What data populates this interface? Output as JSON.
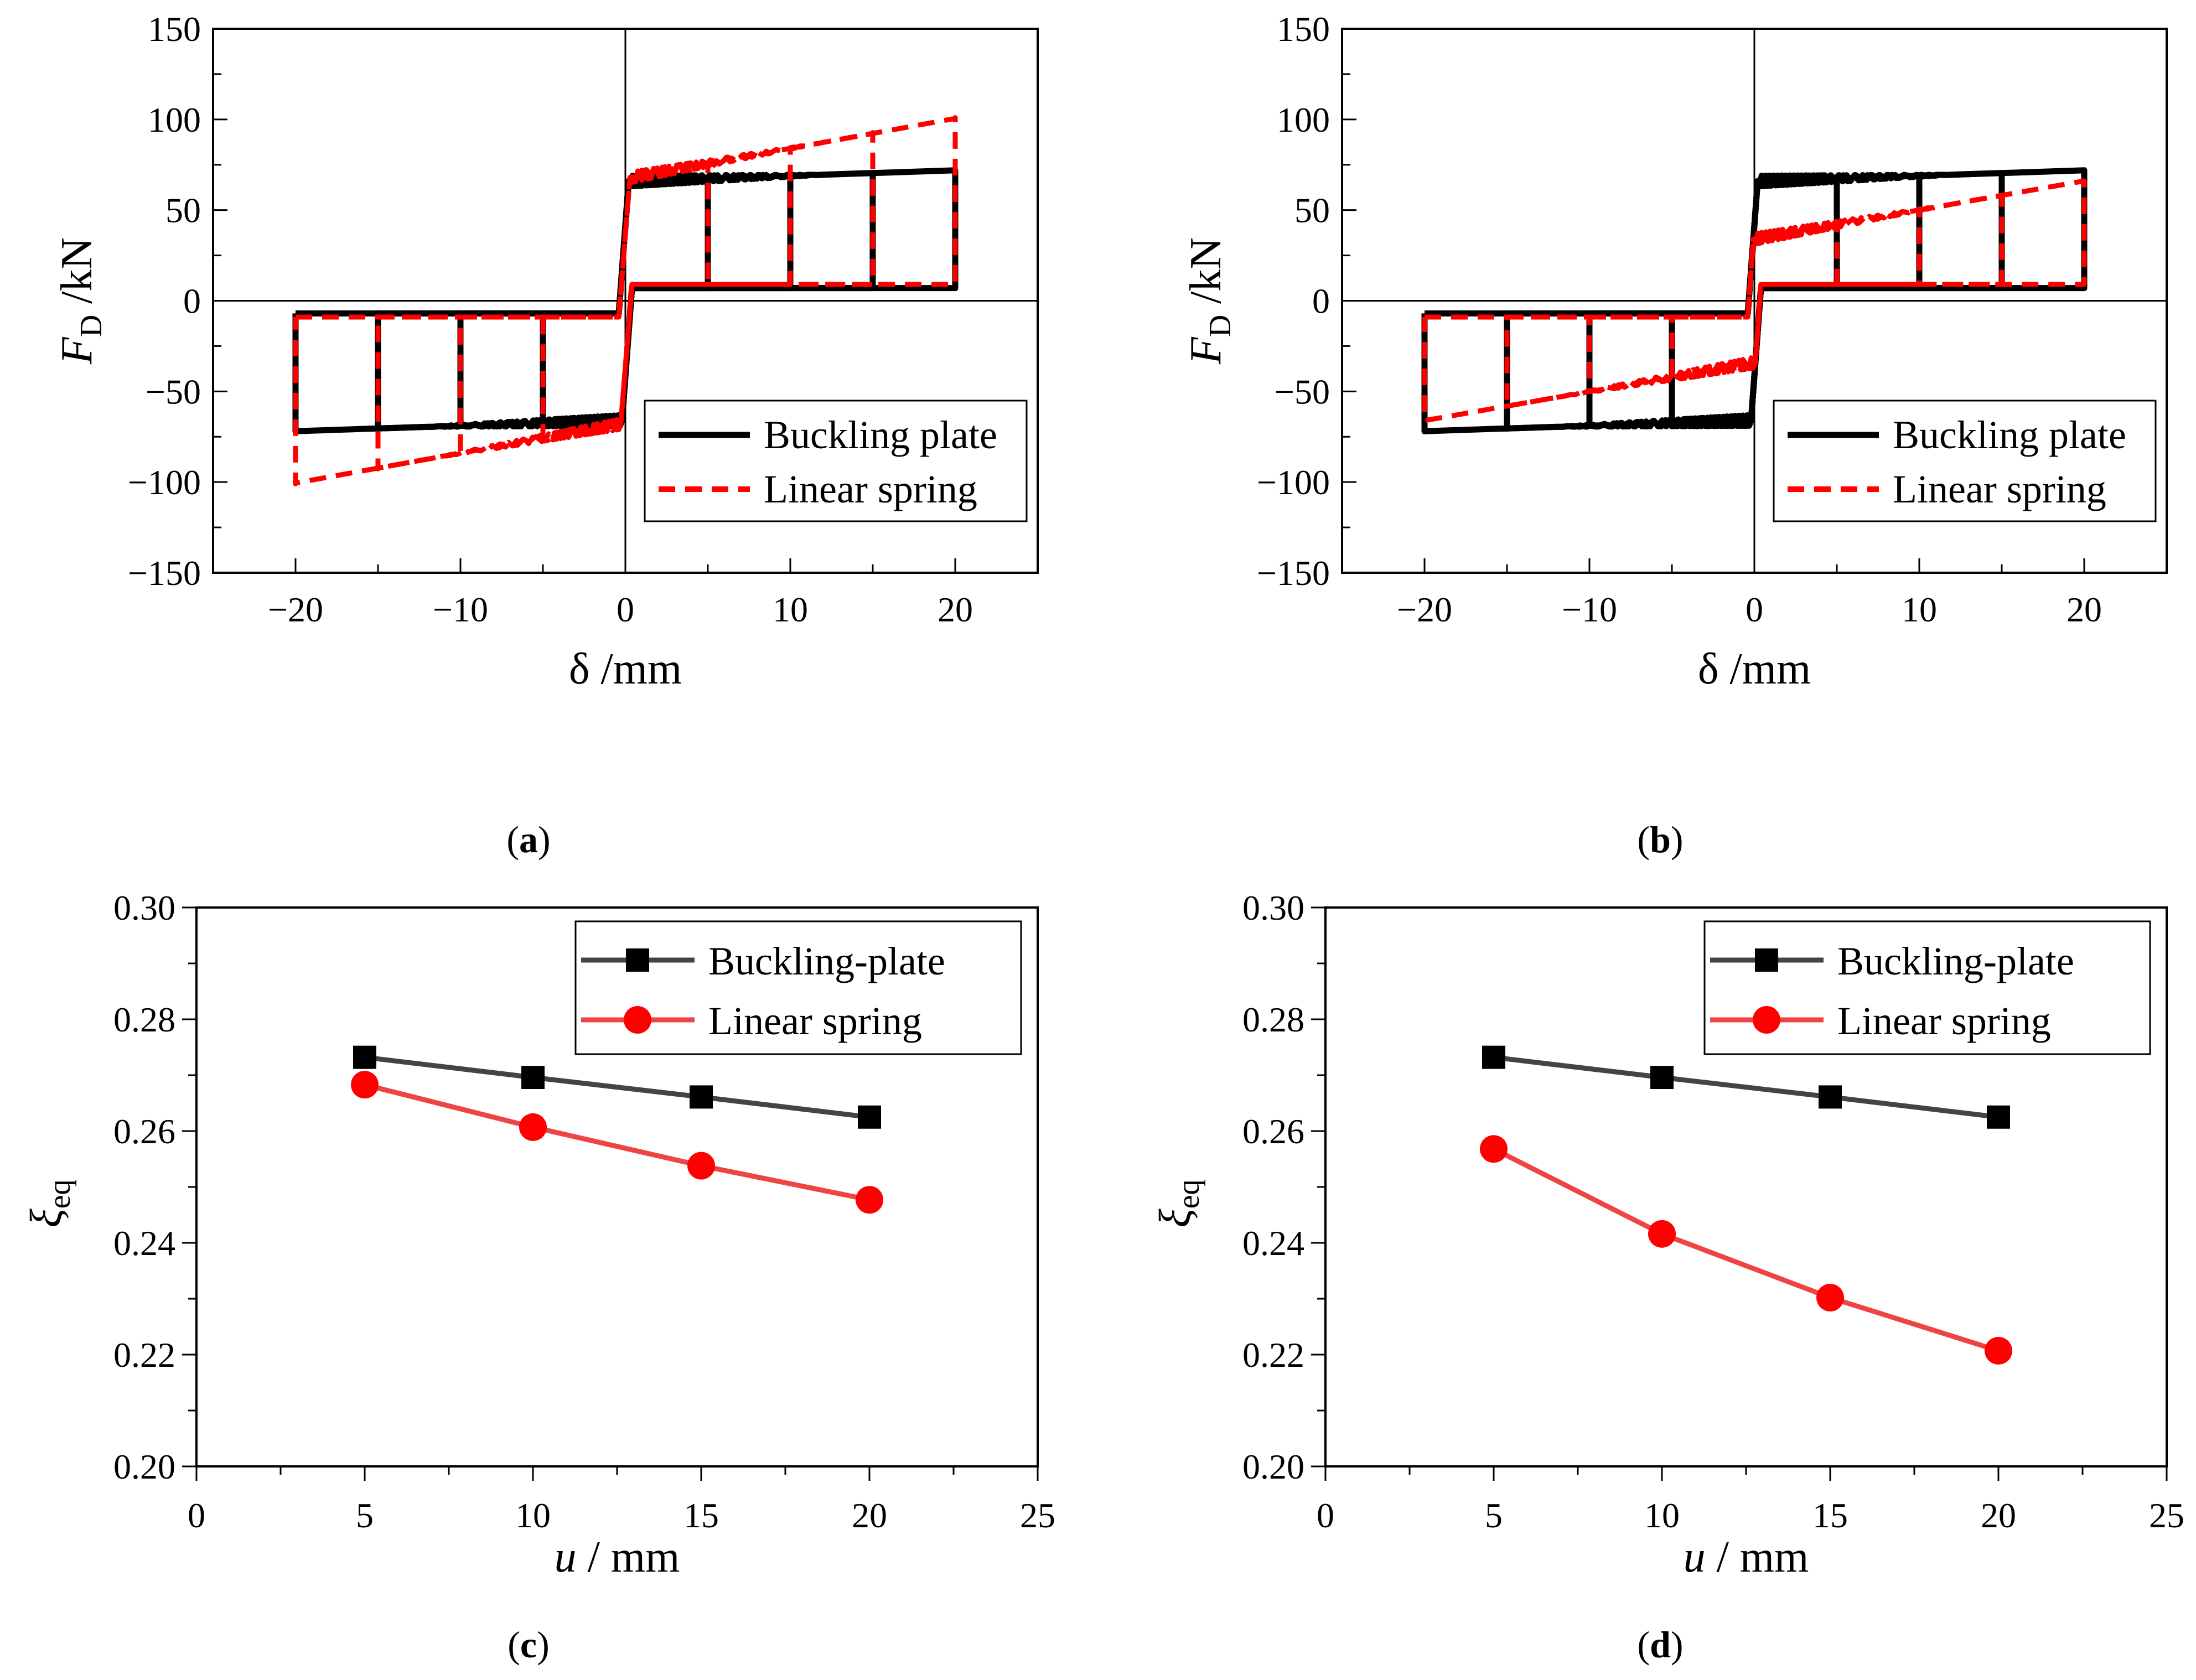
{
  "chart_data": [
    {
      "id": "a",
      "type": "line",
      "panel_label": "a",
      "title": "",
      "xlabel": "δ /mm",
      "ylabel_main": "F",
      "ylabel_sub": "D",
      "ylabel_unit": " /kN",
      "xlim": [
        -25,
        25
      ],
      "ylim": [
        -150,
        150
      ],
      "xticks": [
        "−20",
        "−10",
        "0",
        "10",
        "20"
      ],
      "xtick_values": [
        -20,
        -10,
        0,
        10,
        20
      ],
      "yticks": [
        "150",
        "100",
        "50",
        "0",
        "−50",
        "−100",
        "−150"
      ],
      "ytick_values": [
        150,
        100,
        50,
        0,
        -50,
        -100,
        -150
      ],
      "legend": [
        "Buckling plate",
        "Linear spring"
      ],
      "colors": {
        "buckling": "#000000",
        "spring": "#ff0000"
      },
      "series": [
        {
          "name": "Buckling plate",
          "style": "solid",
          "loops": [
            {
              "amp": 5,
              "yield_pos": 66,
              "yield_neg": -66,
              "hard_slope": 0.3,
              "fric": 7
            },
            {
              "amp": 10,
              "yield_pos": 66,
              "yield_neg": -66,
              "hard_slope": 0.3,
              "fric": 7
            },
            {
              "amp": 15,
              "yield_pos": 66,
              "yield_neg": -66,
              "hard_slope": 0.3,
              "fric": 7
            },
            {
              "amp": 20,
              "yield_pos": 66,
              "yield_neg": -66,
              "hard_slope": 0.3,
              "fric": 7
            }
          ]
        },
        {
          "name": "Linear spring",
          "style": "dashed",
          "loops": [
            {
              "amp": 5,
              "yield_pos": 68,
              "yield_neg": -68,
              "hard_slope": 1.65,
              "fric": 9
            },
            {
              "amp": 10,
              "yield_pos": 68,
              "yield_neg": -68,
              "hard_slope": 1.65,
              "fric": 9
            },
            {
              "amp": 15,
              "yield_pos": 68,
              "yield_neg": -68,
              "hard_slope": 1.65,
              "fric": 9
            },
            {
              "amp": 20,
              "yield_pos": 68,
              "yield_neg": -68,
              "hard_slope": 1.65,
              "fric": 9
            }
          ]
        }
      ]
    },
    {
      "id": "b",
      "type": "line",
      "panel_label": "b",
      "title": "",
      "xlabel": "δ /mm",
      "ylabel_main": "F",
      "ylabel_sub": "D",
      "ylabel_unit": " /kN",
      "xlim": [
        -25,
        25
      ],
      "ylim": [
        -150,
        150
      ],
      "xticks": [
        "−20",
        "−10",
        "0",
        "10",
        "20"
      ],
      "xtick_values": [
        -20,
        -10,
        0,
        10,
        20
      ],
      "yticks": [
        "150",
        "100",
        "50",
        "0",
        "−50",
        "−100",
        "−150"
      ],
      "ytick_values": [
        150,
        100,
        50,
        0,
        -50,
        -100,
        -150
      ],
      "legend": [
        "Buckling plate",
        "Linear spring"
      ],
      "colors": {
        "buckling": "#000000",
        "spring": "#ff0000"
      },
      "series": [
        {
          "name": "Buckling plate",
          "style": "solid",
          "loops": [
            {
              "amp": 5,
              "yield_pos": 66,
              "yield_neg": -66,
              "hard_slope": 0.3,
              "fric": 7
            },
            {
              "amp": 10,
              "yield_pos": 66,
              "yield_neg": -66,
              "hard_slope": 0.3,
              "fric": 7
            },
            {
              "amp": 15,
              "yield_pos": 66,
              "yield_neg": -66,
              "hard_slope": 0.3,
              "fric": 7
            },
            {
              "amp": 20,
              "yield_pos": 66,
              "yield_neg": -66,
              "hard_slope": 0.3,
              "fric": 7
            }
          ]
        },
        {
          "name": "Linear spring",
          "style": "dashed",
          "loops": [
            {
              "amp": 5,
              "yield_pos": 34,
              "yield_neg": -34,
              "hard_slope": 1.6,
              "fric": 9
            },
            {
              "amp": 10,
              "yield_pos": 34,
              "yield_neg": -34,
              "hard_slope": 1.6,
              "fric": 9
            },
            {
              "amp": 15,
              "yield_pos": 34,
              "yield_neg": -34,
              "hard_slope": 1.6,
              "fric": 9
            },
            {
              "amp": 20,
              "yield_pos": 34,
              "yield_neg": -34,
              "hard_slope": 1.6,
              "fric": 9
            }
          ]
        }
      ]
    },
    {
      "id": "c",
      "type": "line",
      "panel_label": "c",
      "title": "",
      "xlabel_main": "u",
      "xlabel_unit": " / mm",
      "ylabel_main": "ξ",
      "ylabel_sub": "eq",
      "xlim": [
        0,
        25
      ],
      "ylim": [
        0.2,
        0.3
      ],
      "xticks": [
        "0",
        "5",
        "10",
        "15",
        "20",
        "25"
      ],
      "xtick_values": [
        0,
        5,
        10,
        15,
        20,
        25
      ],
      "yticks": [
        "0.30",
        "0.28",
        "0.26",
        "0.24",
        "0.22",
        "0.20"
      ],
      "ytick_values": [
        0.3,
        0.28,
        0.26,
        0.24,
        0.22,
        0.2
      ],
      "legend": [
        "Buckling-plate",
        "Linear spring"
      ],
      "x": [
        5,
        10,
        15,
        20
      ],
      "series": [
        {
          "name": "Buckling-plate",
          "marker": "square",
          "line_color": "#444444",
          "marker_color": "#000000",
          "values": [
            0.2732,
            0.2696,
            0.2661,
            0.2625
          ]
        },
        {
          "name": "Linear spring",
          "marker": "circle",
          "line_color": "#ee4444",
          "marker_color": "#ff0000",
          "values": [
            0.2683,
            0.2607,
            0.2538,
            0.2477
          ]
        }
      ]
    },
    {
      "id": "d",
      "type": "line",
      "panel_label": "d",
      "title": "",
      "xlabel_main": "u",
      "xlabel_unit": " / mm",
      "ylabel_main": "ξ",
      "ylabel_sub": "eq",
      "xlim": [
        0,
        25
      ],
      "ylim": [
        0.2,
        0.3
      ],
      "xticks": [
        "0",
        "5",
        "10",
        "15",
        "20",
        "25"
      ],
      "xtick_values": [
        0,
        5,
        10,
        15,
        20,
        25
      ],
      "yticks": [
        "0.30",
        "0.28",
        "0.26",
        "0.24",
        "0.22",
        "0.20"
      ],
      "ytick_values": [
        0.3,
        0.28,
        0.26,
        0.24,
        0.22,
        0.2
      ],
      "legend": [
        "Buckling-plate",
        "Linear spring"
      ],
      "x": [
        5,
        10,
        15,
        20
      ],
      "series": [
        {
          "name": "Buckling-plate",
          "marker": "square",
          "line_color": "#444444",
          "marker_color": "#000000",
          "values": [
            0.2732,
            0.2696,
            0.2661,
            0.2625
          ]
        },
        {
          "name": "Linear spring",
          "marker": "circle",
          "line_color": "#ee4444",
          "marker_color": "#ff0000",
          "values": [
            0.2568,
            0.2416,
            0.2302,
            0.2207
          ]
        }
      ]
    }
  ]
}
